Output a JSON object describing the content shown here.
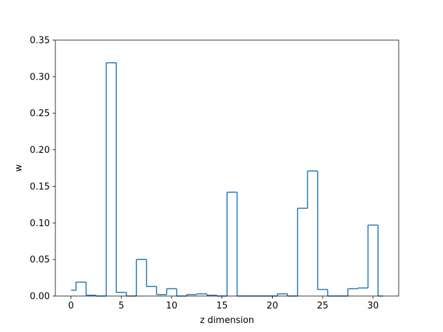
{
  "chart_data": {
    "type": "step",
    "xlabel": "z dimension",
    "ylabel": "w",
    "xlim": [
      -1.55,
      32.55
    ],
    "ylim": [
      0,
      0.35
    ],
    "xticks": [
      0,
      5,
      10,
      15,
      20,
      25,
      30
    ],
    "xtick_labels": [
      "0",
      "5",
      "10",
      "15",
      "20",
      "25",
      "30"
    ],
    "yticks": [
      0,
      0.05,
      0.1,
      0.15,
      0.2,
      0.25,
      0.3,
      0.35
    ],
    "ytick_labels": [
      "0.00",
      "0.05",
      "0.10",
      "0.15",
      "0.20",
      "0.25",
      "0.30",
      "0.35"
    ],
    "line_color": "#1f77b4",
    "step_where": "mid",
    "x": [
      0,
      1,
      2,
      3,
      4,
      5,
      6,
      7,
      8,
      9,
      10,
      11,
      12,
      13,
      14,
      15,
      16,
      17,
      18,
      19,
      20,
      21,
      22,
      23,
      24,
      25,
      26,
      27,
      28,
      29,
      30,
      31
    ],
    "values": [
      0.008,
      0.019,
      0.001,
      0.0,
      0.319,
      0.005,
      0.0,
      0.05,
      0.013,
      0.002,
      0.01,
      0.0,
      0.002,
      0.003,
      0.001,
      0.0,
      0.142,
      0.0,
      0.0,
      0.0,
      0.0,
      0.003,
      0.0,
      0.12,
      0.171,
      0.009,
      0.0,
      0.0,
      0.01,
      0.011,
      0.097,
      0.0
    ]
  }
}
